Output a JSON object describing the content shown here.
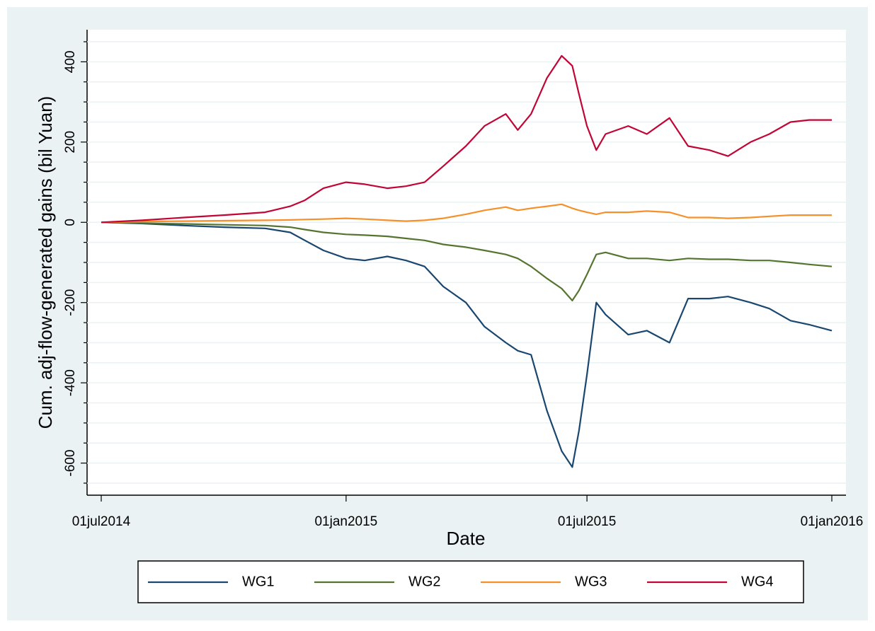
{
  "chart_data": {
    "type": "line",
    "y_label": "Cum. adj-flow-generated gains (bil Yuan)",
    "x_label": "Date",
    "x": [
      "2014-07-01",
      "2014-08-01",
      "2014-09-01",
      "2014-10-01",
      "2014-11-01",
      "2014-11-20",
      "2014-12-01",
      "2014-12-15",
      "2015-01-01",
      "2015-01-15",
      "2015-02-01",
      "2015-02-15",
      "2015-03-01",
      "2015-03-15",
      "2015-04-01",
      "2015-04-15",
      "2015-05-01",
      "2015-05-10",
      "2015-05-20",
      "2015-06-01",
      "2015-06-12",
      "2015-06-20",
      "2015-06-25",
      "2015-07-01",
      "2015-07-08",
      "2015-07-15",
      "2015-08-01",
      "2015-08-15",
      "2015-09-01",
      "2015-09-15",
      "2015-10-01",
      "2015-10-15",
      "2015-11-01",
      "2015-11-15",
      "2015-12-01",
      "2015-12-15",
      "2016-01-01"
    ],
    "series": [
      {
        "name": "WG1",
        "color": "#1a476f",
        "values": [
          0,
          -3,
          -8,
          -12,
          -15,
          -25,
          -45,
          -70,
          -90,
          -95,
          -85,
          -95,
          -110,
          -160,
          -200,
          -260,
          -300,
          -320,
          -330,
          -470,
          -570,
          -610,
          -520,
          -380,
          -200,
          -230,
          -280,
          -270,
          -300,
          -190,
          -190,
          -185,
          -200,
          -215,
          -245,
          -255,
          -270
        ]
      },
      {
        "name": "WG2",
        "color": "#55752f",
        "values": [
          0,
          -2,
          -4,
          -6,
          -8,
          -12,
          -18,
          -25,
          -30,
          -32,
          -35,
          -40,
          -45,
          -55,
          -62,
          -70,
          -80,
          -90,
          -110,
          -140,
          -165,
          -195,
          -170,
          -130,
          -80,
          -75,
          -90,
          -90,
          -95,
          -90,
          -92,
          -92,
          -95,
          -95,
          -100,
          -105,
          -110
        ]
      },
      {
        "name": "WG3",
        "color": "#f5902a",
        "values": [
          0,
          2,
          3,
          4,
          5,
          6,
          7,
          8,
          10,
          8,
          5,
          3,
          5,
          10,
          20,
          30,
          38,
          30,
          35,
          40,
          45,
          35,
          30,
          25,
          20,
          25,
          25,
          28,
          25,
          12,
          12,
          10,
          12,
          15,
          18,
          18,
          18
        ]
      },
      {
        "name": "WG4",
        "color": "#c10534",
        "values": [
          0,
          5,
          12,
          18,
          25,
          40,
          55,
          85,
          100,
          95,
          85,
          90,
          100,
          140,
          190,
          240,
          270,
          230,
          270,
          360,
          415,
          390,
          320,
          240,
          180,
          220,
          240,
          220,
          260,
          190,
          180,
          165,
          200,
          220,
          250,
          255,
          255
        ]
      }
    ],
    "xlim": [
      "2014-07-01",
      "2016-01-01"
    ],
    "xticks": [
      {
        "value": "2014-07-01",
        "label": "01jul2014"
      },
      {
        "value": "2015-01-01",
        "label": "01jan2015"
      },
      {
        "value": "2015-07-01",
        "label": "01jul2015"
      },
      {
        "value": "2016-01-01",
        "label": "01jan2016"
      }
    ],
    "ylim": [
      -680,
      480
    ],
    "yticks": [
      -600,
      -400,
      -200,
      0,
      200,
      400
    ],
    "yminorticks": [
      -650,
      -550,
      -500,
      -450,
      -350,
      -300,
      -250,
      -150,
      -100,
      -50,
      50,
      100,
      150,
      250,
      300,
      350,
      450
    ],
    "grid": true,
    "legend": "bottom"
  }
}
